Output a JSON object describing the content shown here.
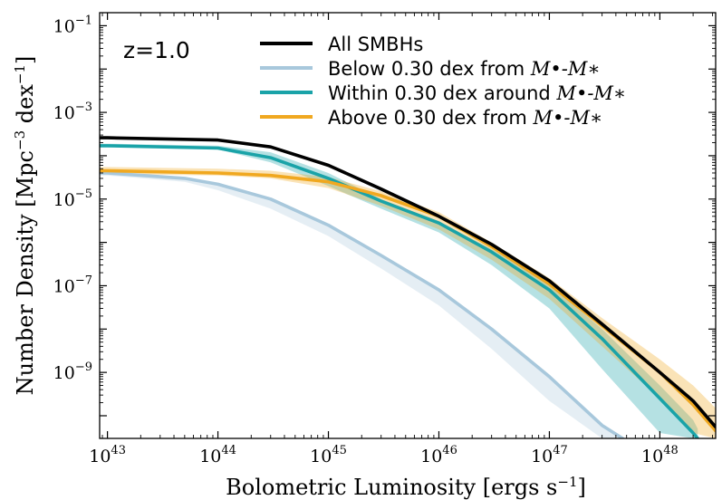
{
  "chart_data": {
    "type": "line",
    "annotation": "z=1.0",
    "xlabel": "Bolometric Luminosity [ergs s",
    "xlabel_sup": "−1",
    "xlabel_end": "]",
    "ylabel": "Number Density [Mpc",
    "ylabel_sup1": "−3",
    "ylabel_mid": " dex",
    "ylabel_sup2": "−1",
    "ylabel_end": "]",
    "xscale": "log",
    "yscale": "log",
    "xlim": [
      8.5e+42,
      3.2e+48
    ],
    "ylim": [
      3e-11,
      0.2
    ],
    "x_ticks": [
      {
        "base": "10",
        "exp": "43",
        "value": 1e+43
      },
      {
        "base": "10",
        "exp": "44",
        "value": 1e+44
      },
      {
        "base": "10",
        "exp": "45",
        "value": 1e+45
      },
      {
        "base": "10",
        "exp": "46",
        "value": 1e+46
      },
      {
        "base": "10",
        "exp": "47",
        "value": 1e+47
      },
      {
        "base": "10",
        "exp": "48",
        "value": 1e+48
      }
    ],
    "y_ticks": [
      {
        "base": "10",
        "exp": "−1",
        "value": 0.1
      },
      {
        "base": "10",
        "exp": "−3",
        "value": 0.001
      },
      {
        "base": "10",
        "exp": "−5",
        "value": 1e-05
      },
      {
        "base": "10",
        "exp": "−7",
        "value": 1e-07
      },
      {
        "base": "10",
        "exp": "−9",
        "value": 1e-09
      }
    ],
    "legend_position": "top-center",
    "legend": [
      {
        "text": "All SMBHs",
        "math": ""
      },
      {
        "text": "Below 0.30 dex from ",
        "math": "M•-M∗"
      },
      {
        "text": "Within 0.30 dex around ",
        "math": "M•-M∗"
      },
      {
        "text": "Above 0.30 dex from ",
        "math": "M•-M∗"
      }
    ],
    "series": [
      {
        "color": "#000000",
        "x": [
          8.5e+42,
          1e+43,
          1e+44,
          3e+44,
          1e+45,
          3e+45,
          1e+46,
          3e+46,
          1e+47,
          3e+47,
          1e+48,
          2e+48,
          3.2e+48
        ],
        "y": [
          0.00026,
          0.00026,
          0.00023,
          0.00016,
          6e-05,
          1.7e-05,
          4e-06,
          9e-07,
          1.3e-07,
          1.3e-08,
          1e-09,
          2.2e-10,
          5.5e-11
        ],
        "band_low": [],
        "band_high": []
      },
      {
        "color": "#a8c8dc",
        "x": [
          8.5e+42,
          1e+43,
          5e+43,
          1e+44,
          3e+44,
          1e+45,
          3e+45,
          1e+46,
          3e+46,
          1e+47,
          3e+47,
          4.6e+47
        ],
        "y": [
          4e-05,
          4e-05,
          3e-05,
          2.2e-05,
          1e-05,
          2.5e-06,
          5e-07,
          8e-08,
          1e-08,
          8e-10,
          6e-11,
          3e-11
        ],
        "band_low": [
          3.5e-05,
          3.5e-05,
          2.5e-05,
          1.6e-05,
          6e-06,
          1.4e-06,
          2.5e-07,
          3.5e-08,
          3.5e-09,
          2.2e-10,
          3e-11,
          3e-11
        ],
        "band_high": [
          4e-05,
          4e-05,
          3e-05,
          2.2e-05,
          1e-05,
          2.5e-06,
          5e-07,
          8e-08,
          1e-08,
          8e-10,
          6e-11,
          3e-11
        ]
      },
      {
        "color": "#1aa3a8",
        "x": [
          8.5e+42,
          1e+43,
          1e+44,
          3e+44,
          1e+45,
          3e+45,
          1e+46,
          3e+46,
          1e+47,
          3e+47,
          1e+48,
          2e+48,
          2.2e+48
        ],
        "y": [
          0.00017,
          0.00017,
          0.00015,
          9e-05,
          3e-05,
          9e-06,
          2.8e-06,
          6e-07,
          8e-08,
          6e-09,
          2.5e-10,
          4e-11,
          3e-11
        ],
        "band_low": [
          0.00017,
          0.00017,
          0.00014,
          7e-05,
          2e-05,
          6e-06,
          1.7e-06,
          3e-07,
          3e-08,
          1.2e-09,
          4e-11,
          3e-11,
          3e-11
        ],
        "band_high": [
          0.00019,
          0.00019,
          0.00017,
          0.00012,
          4e-05,
          1e-05,
          3e-06,
          7e-07,
          1.1e-07,
          1e-08,
          5e-10,
          8e-11,
          5e-11
        ]
      },
      {
        "color": "#f0a820",
        "x": [
          8.5e+42,
          1e+43,
          1e+44,
          3e+44,
          1e+45,
          3e+45,
          1e+46,
          3e+46,
          1e+47,
          3e+47,
          1e+48,
          2e+48,
          3.2e+48
        ],
        "y": [
          4.5e-05,
          4.5e-05,
          4e-05,
          3.5e-05,
          2.5e-05,
          1.2e-05,
          4e-06,
          8e-07,
          1.1e-07,
          1.2e-08,
          1e-09,
          1.8e-10,
          4.5e-11
        ],
        "band_low": [
          3.8e-05,
          3.8e-05,
          3.5e-05,
          3e-05,
          1.8e-05,
          7e-06,
          2e-06,
          4e-07,
          5e-08,
          4e-09,
          2.5e-10,
          4e-11,
          3e-11
        ],
        "band_high": [
          5.5e-05,
          5.5e-05,
          5e-05,
          4.5e-05,
          3.2e-05,
          1.5e-05,
          5e-06,
          1e-06,
          1.5e-07,
          1.8e-08,
          2e-09,
          5e-10,
          1.5e-10
        ]
      }
    ]
  }
}
